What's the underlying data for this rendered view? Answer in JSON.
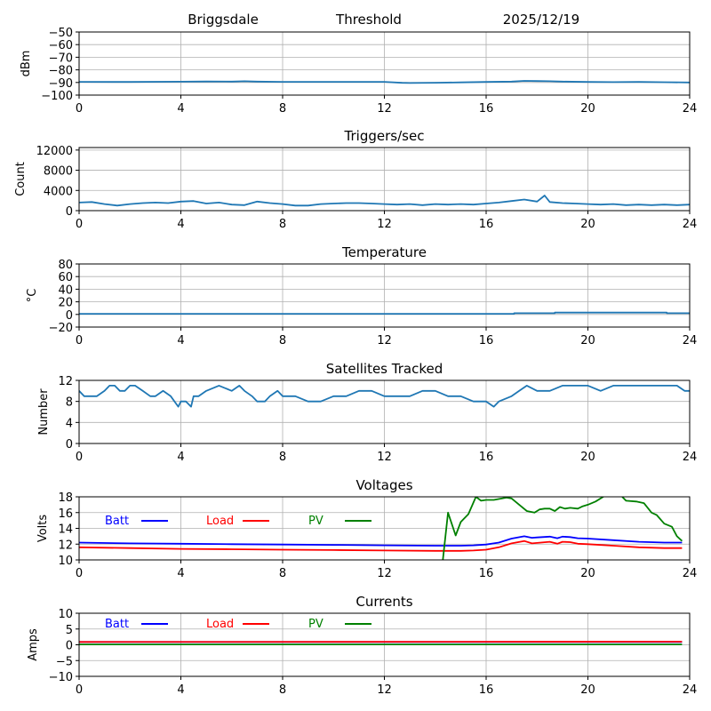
{
  "header": {
    "site": "Briggsdale",
    "mode": "Threshold",
    "date": "2025/12/19"
  },
  "colors": {
    "series_default": "#1f77b4",
    "batt": "#0000ff",
    "load": "#ff0000",
    "pv": "#008000",
    "grid": "#b0b0b0"
  },
  "chart_data": [
    {
      "type": "line",
      "id": "noise",
      "title": "",
      "ylabel": "dBm",
      "xlabel": "",
      "xlim": [
        0,
        24
      ],
      "ylim": [
        -100,
        -50
      ],
      "xticks": [
        0,
        4,
        8,
        12,
        16,
        20,
        24
      ],
      "yticks": [
        -100,
        -90,
        -80,
        -70,
        -60,
        -50
      ],
      "ytick_labels": [
        "−100",
        "−90",
        "−80",
        "−70",
        "−60",
        "−50"
      ],
      "grid": true,
      "series": [
        {
          "name": "dBm",
          "color": "#1f77b4",
          "x": [
            0,
            2,
            4,
            5,
            6,
            6.5,
            7,
            8,
            10,
            12,
            12.7,
            13,
            14,
            15,
            16,
            17,
            17.5,
            18,
            18.5,
            19,
            20,
            21,
            22,
            23,
            24
          ],
          "y": [
            -89.5,
            -89.6,
            -89.4,
            -89.2,
            -89.3,
            -89.0,
            -89.3,
            -89.5,
            -89.5,
            -89.5,
            -90.3,
            -90.4,
            -90.2,
            -89.9,
            -89.6,
            -89.3,
            -88.7,
            -88.9,
            -89.0,
            -89.3,
            -89.6,
            -89.7,
            -89.6,
            -89.8,
            -90.0
          ]
        }
      ]
    },
    {
      "type": "line",
      "id": "triggers",
      "title": "Triggers/sec",
      "ylabel": "Count",
      "xlabel": "",
      "xlim": [
        0,
        24
      ],
      "ylim": [
        0,
        12500
      ],
      "xticks": [
        0,
        4,
        8,
        12,
        16,
        20,
        24
      ],
      "yticks": [
        0,
        4000,
        8000,
        12000
      ],
      "ytick_labels": [
        "0",
        "4000",
        "8000",
        "12000"
      ],
      "grid": true,
      "series": [
        {
          "name": "Count",
          "color": "#1f77b4",
          "x": [
            0,
            0.5,
            1,
            1.5,
            2,
            2.5,
            3,
            3.5,
            4,
            4.5,
            5,
            5.5,
            6,
            6.5,
            7,
            7.5,
            8,
            8.5,
            9,
            9.5,
            10,
            10.5,
            11,
            11.5,
            12,
            12.5,
            13,
            13.5,
            14,
            14.5,
            15,
            15.5,
            16,
            16.5,
            17,
            17.5,
            18,
            18.3,
            18.5,
            19,
            19.5,
            20,
            20.5,
            21,
            21.5,
            22,
            22.5,
            23,
            23.5,
            24
          ],
          "y": [
            1600,
            1700,
            1300,
            1000,
            1300,
            1500,
            1600,
            1500,
            1800,
            1900,
            1400,
            1600,
            1200,
            1100,
            1800,
            1500,
            1300,
            1000,
            1000,
            1300,
            1400,
            1500,
            1500,
            1400,
            1300,
            1200,
            1300,
            1100,
            1300,
            1200,
            1300,
            1200,
            1400,
            1600,
            1900,
            2200,
            1800,
            3000,
            1700,
            1500,
            1400,
            1300,
            1200,
            1300,
            1100,
            1200,
            1100,
            1200,
            1100,
            1200
          ]
        }
      ]
    },
    {
      "type": "line",
      "id": "temperature",
      "title": "Temperature",
      "ylabel": "°C",
      "xlabel": "",
      "xlim": [
        0,
        24
      ],
      "ylim": [
        -20,
        80
      ],
      "xticks": [
        0,
        4,
        8,
        12,
        16,
        20,
        24
      ],
      "yticks": [
        -20,
        0,
        20,
        40,
        60,
        80
      ],
      "ytick_labels": [
        "−20",
        "0",
        "20",
        "40",
        "60",
        "80"
      ],
      "grid": true,
      "series": [
        {
          "name": "Temp",
          "color": "#1f77b4",
          "x": [
            0,
            17.1,
            17.1,
            18.7,
            18.7,
            23.1,
            23.1,
            24
          ],
          "y": [
            1.0,
            1.0,
            2.0,
            2.0,
            3.0,
            3.0,
            2.0,
            2.0
          ]
        }
      ]
    },
    {
      "type": "line",
      "id": "satellites",
      "title": "Satellites Tracked",
      "ylabel": "Number",
      "xlabel": "",
      "xlim": [
        0,
        24
      ],
      "ylim": [
        0,
        12
      ],
      "xticks": [
        0,
        4,
        8,
        12,
        16,
        20,
        24
      ],
      "yticks": [
        0,
        4,
        8,
        12
      ],
      "ytick_labels": [
        "0",
        "4",
        "8",
        "12"
      ],
      "grid": true,
      "series": [
        {
          "name": "Sats",
          "color": "#1f77b4",
          "x": [
            0,
            0.2,
            0.7,
            1.0,
            1.2,
            1.4,
            1.6,
            1.8,
            2.0,
            2.2,
            2.5,
            2.8,
            3.0,
            3.3,
            3.6,
            3.9,
            4.0,
            4.2,
            4.4,
            4.5,
            4.7,
            5.0,
            5.5,
            6.0,
            6.3,
            6.5,
            6.8,
            7.0,
            7.3,
            7.5,
            7.8,
            8.0,
            8.5,
            9.0,
            9.5,
            10.0,
            10.5,
            11.0,
            11.5,
            12.0,
            12.5,
            13.0,
            13.5,
            14.0,
            14.5,
            15.0,
            15.5,
            16.0,
            16.3,
            16.5,
            17.0,
            17.3,
            17.6,
            18.0,
            18.5,
            19.0,
            19.5,
            20.0,
            20.5,
            21.0,
            21.5,
            22.0,
            22.5,
            23.0,
            23.5,
            23.8,
            24
          ],
          "y": [
            10,
            9,
            9,
            10,
            11,
            11,
            10,
            10,
            11,
            11,
            10,
            9,
            9,
            10,
            9,
            7,
            8,
            8,
            7,
            9,
            9,
            10,
            11,
            10,
            11,
            10,
            9,
            8,
            8,
            9,
            10,
            9,
            9,
            8,
            8,
            9,
            9,
            10,
            10,
            9,
            9,
            9,
            10,
            10,
            9,
            9,
            8,
            8,
            7,
            8,
            9,
            10,
            11,
            10,
            10,
            11,
            11,
            11,
            10,
            11,
            11,
            11,
            11,
            11,
            11,
            10,
            10
          ]
        }
      ]
    },
    {
      "type": "line",
      "id": "voltages",
      "title": "Voltages",
      "ylabel": "Volts",
      "xlabel": "",
      "xlim": [
        0,
        24
      ],
      "ylim": [
        10,
        18
      ],
      "xticks": [
        0,
        4,
        8,
        12,
        16,
        20,
        24
      ],
      "yticks": [
        10,
        12,
        14,
        16,
        18
      ],
      "ytick_labels": [
        "10",
        "12",
        "14",
        "16",
        "18"
      ],
      "grid": true,
      "legend": {
        "placement": "top-left",
        "entries": [
          "Batt",
          "Load",
          "PV"
        ]
      },
      "series": [
        {
          "name": "Batt",
          "color": "#0000ff",
          "x": [
            0,
            2,
            4,
            6,
            8,
            10,
            12,
            14,
            15,
            15.5,
            16,
            16.5,
            17,
            17.5,
            17.8,
            18,
            18.5,
            18.8,
            19,
            19.3,
            19.6,
            20,
            21,
            22,
            23,
            23.7
          ],
          "y": [
            12.2,
            12.1,
            12.05,
            12.0,
            11.95,
            11.9,
            11.85,
            11.8,
            11.8,
            11.85,
            11.95,
            12.2,
            12.7,
            13.0,
            12.8,
            12.85,
            12.95,
            12.75,
            12.95,
            12.9,
            12.75,
            12.7,
            12.5,
            12.3,
            12.2,
            12.2
          ]
        },
        {
          "name": "Load",
          "color": "#ff0000",
          "x": [
            0,
            2,
            4,
            6,
            8,
            10,
            12,
            14,
            15,
            15.5,
            16,
            16.5,
            17,
            17.5,
            17.8,
            18,
            18.5,
            18.8,
            19,
            19.3,
            19.6,
            20,
            21,
            22,
            23,
            23.7
          ],
          "y": [
            11.6,
            11.5,
            11.4,
            11.35,
            11.3,
            11.25,
            11.2,
            11.15,
            11.15,
            11.2,
            11.3,
            11.6,
            12.1,
            12.4,
            12.1,
            12.15,
            12.3,
            12.05,
            12.3,
            12.25,
            12.05,
            12.0,
            11.8,
            11.6,
            11.5,
            11.5
          ]
        },
        {
          "name": "PV",
          "color": "#008000",
          "x": [
            14.3,
            14.5,
            14.8,
            15.0,
            15.3,
            15.6,
            15.8,
            16.0,
            16.3,
            16.8,
            17.0,
            17.3,
            17.6,
            17.9,
            18.1,
            18.3,
            18.5,
            18.7,
            18.9,
            19.1,
            19.3,
            19.6,
            19.8,
            20.0,
            20.3,
            20.6,
            20.8,
            21.0,
            21.2,
            21.5,
            21.9,
            22.2,
            22.5,
            22.7,
            23.0,
            23.3,
            23.5,
            23.7
          ],
          "y": [
            10.0,
            16.0,
            13.1,
            14.8,
            15.8,
            18.0,
            17.5,
            17.6,
            17.6,
            17.9,
            17.8,
            17.0,
            16.2,
            16.0,
            16.4,
            16.5,
            16.5,
            16.2,
            16.7,
            16.5,
            16.6,
            16.5,
            16.8,
            17.0,
            17.4,
            18.0,
            18.5,
            18.8,
            18.5,
            17.5,
            17.4,
            17.2,
            16.0,
            15.7,
            14.6,
            14.2,
            13.0,
            12.4
          ]
        }
      ]
    },
    {
      "type": "line",
      "id": "currents",
      "title": "Currents",
      "ylabel": "Amps",
      "xlabel": "",
      "xlim": [
        0,
        24
      ],
      "ylim": [
        -10,
        10
      ],
      "xticks": [
        0,
        4,
        8,
        12,
        16,
        20,
        24
      ],
      "yticks": [
        -10,
        -5,
        0,
        5,
        10
      ],
      "ytick_labels": [
        "−10",
        "−5",
        "0",
        "5",
        "10"
      ],
      "grid": true,
      "legend": {
        "placement": "top-left",
        "entries": [
          "Batt",
          "Load",
          "PV"
        ]
      },
      "series": [
        {
          "name": "Batt",
          "color": "#0000ff",
          "x": [
            0,
            23.7
          ],
          "y": [
            0.9,
            0.9
          ]
        },
        {
          "name": "Load",
          "color": "#ff0000",
          "x": [
            0,
            23.7
          ],
          "y": [
            0.9,
            1.0
          ]
        },
        {
          "name": "PV",
          "color": "#008000",
          "x": [
            0,
            23.7
          ],
          "y": [
            0.1,
            0.1
          ]
        }
      ]
    }
  ]
}
